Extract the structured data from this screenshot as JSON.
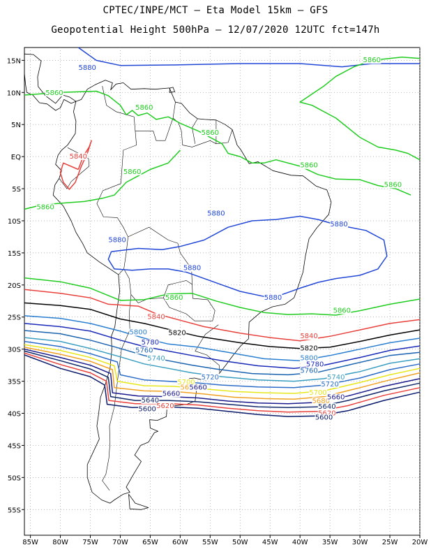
{
  "header": {
    "line1": "CPTEC/INPE/MCT –  Eta Model 15km – GFS",
    "line2": "Geopotential Height 500hPa – 12/07/2020 12UTC fct=147h"
  },
  "axes": {
    "lat_labels": [
      "15N",
      "10N",
      "5N",
      "EQ",
      "5S",
      "10S",
      "15S",
      "20S",
      "25S",
      "30S",
      "35S",
      "40S",
      "45S",
      "50S",
      "55S"
    ],
    "lat_values": [
      15,
      10,
      5,
      0,
      -5,
      -10,
      -15,
      -20,
      -25,
      -30,
      -35,
      -40,
      -45,
      -50,
      -55
    ],
    "lon_labels": [
      "85W",
      "80W",
      "75W",
      "70W",
      "65W",
      "60W",
      "55W",
      "50W",
      "45W",
      "40W",
      "35W",
      "30W",
      "25W",
      "20W"
    ],
    "lon_values": [
      -85,
      -80,
      -75,
      -70,
      -65,
      -60,
      -55,
      -50,
      -45,
      -40,
      -35,
      -30,
      -25,
      -20
    ],
    "lon_range": [
      -86,
      -20
    ],
    "lat_range": [
      -59,
      17
    ],
    "grid": "dotted"
  },
  "contour_levels": [
    {
      "value": "5880",
      "color": "#2046d6"
    },
    {
      "value": "5860",
      "color": "#1fcc1f"
    },
    {
      "value": "5840",
      "color": "#e8413c"
    },
    {
      "value": "5820",
      "color": "#000000"
    },
    {
      "value": "5800",
      "color": "#2a7fd0"
    },
    {
      "value": "5780",
      "color": "#1a2ab8"
    },
    {
      "value": "5760",
      "color": "#1a63b0"
    },
    {
      "value": "5740",
      "color": "#3a9ec0"
    },
    {
      "value": "5720",
      "color": "#2a6cc8"
    },
    {
      "value": "5700",
      "color": "#e6e61a"
    },
    {
      "value": "5680",
      "color": "#f0a020"
    },
    {
      "value": "5660",
      "color": "#1a1a8c"
    },
    {
      "value": "5640",
      "color": "#10286a"
    },
    {
      "value": "5620",
      "color": "#e8413c"
    },
    {
      "value": "5600",
      "color": "#0a1a6a"
    }
  ],
  "contour_labels": [
    {
      "text": "5880",
      "color": "#2046d6",
      "lon": -75.5,
      "lat": 13.5
    },
    {
      "text": "5860",
      "color": "#1fcc1f",
      "lon": -81,
      "lat": 9.6
    },
    {
      "text": "5860",
      "color": "#1fcc1f",
      "lon": -66,
      "lat": 7.3
    },
    {
      "text": "5860",
      "color": "#1fcc1f",
      "lon": -55,
      "lat": 3.4
    },
    {
      "text": "5860",
      "color": "#1fcc1f",
      "lon": -38.5,
      "lat": -1.7
    },
    {
      "text": "5860",
      "color": "#1fcc1f",
      "lon": -24.5,
      "lat": -4.7
    },
    {
      "text": "5860",
      "color": "#1fcc1f",
      "lon": -28,
      "lat": 14.7
    },
    {
      "text": "5860",
      "color": "#1fcc1f",
      "lon": -68,
      "lat": -2.7
    },
    {
      "text": "5860",
      "color": "#1fcc1f",
      "lon": -82.5,
      "lat": -8.2
    },
    {
      "text": "5840",
      "color": "#e8413c",
      "lon": -77,
      "lat": -0.3
    },
    {
      "text": "5880",
      "color": "#2046d6",
      "lon": -54,
      "lat": -9.2
    },
    {
      "text": "5880",
      "color": "#2046d6",
      "lon": -33.5,
      "lat": -10.9
    },
    {
      "text": "5880",
      "color": "#2046d6",
      "lon": -70.5,
      "lat": -13.3
    },
    {
      "text": "5880",
      "color": "#2046d6",
      "lon": -58,
      "lat": -17.7
    },
    {
      "text": "5860",
      "color": "#1fcc1f",
      "lon": -61,
      "lat": -22.3
    },
    {
      "text": "5880",
      "color": "#2046d6",
      "lon": -44.5,
      "lat": -22.3
    },
    {
      "text": "5860",
      "color": "#1fcc1f",
      "lon": -33,
      "lat": -24.3
    },
    {
      "text": "5840",
      "color": "#e8413c",
      "lon": -64,
      "lat": -25.3
    },
    {
      "text": "5820",
      "color": "#000000",
      "lon": -60.5,
      "lat": -27.8
    },
    {
      "text": "5840",
      "color": "#e8413c",
      "lon": -38.5,
      "lat": -28.3
    },
    {
      "text": "5820",
      "color": "#000000",
      "lon": -38.5,
      "lat": -30.2
    },
    {
      "text": "5800",
      "color": "#2a7fd0",
      "lon": -67,
      "lat": -27.7
    },
    {
      "text": "5780",
      "color": "#1a2ab8",
      "lon": -65,
      "lat": -29.3
    },
    {
      "text": "5760",
      "color": "#1a63b0",
      "lon": -66,
      "lat": -30.5
    },
    {
      "text": "5740",
      "color": "#3a9ec0",
      "lon": -64,
      "lat": -31.8
    },
    {
      "text": "5800",
      "color": "#2a7fd0",
      "lon": -38.5,
      "lat": -31.7
    },
    {
      "text": "5780",
      "color": "#1a2ab8",
      "lon": -37.5,
      "lat": -32.7
    },
    {
      "text": "5760",
      "color": "#1a63b0",
      "lon": -38.5,
      "lat": -33.7
    },
    {
      "text": "5740",
      "color": "#3a9ec0",
      "lon": -34,
      "lat": -34.7
    },
    {
      "text": "5720",
      "color": "#2a6cc8",
      "lon": -55,
      "lat": -34.7
    },
    {
      "text": "5720",
      "color": "#2a6cc8",
      "lon": -35,
      "lat": -35.8
    },
    {
      "text": "5700",
      "color": "#e6e61a",
      "lon": -59,
      "lat": -35.5
    },
    {
      "text": "5680",
      "color": "#f0a020",
      "lon": -58.5,
      "lat": -36.3
    },
    {
      "text": "5660",
      "color": "#1a1a8c",
      "lon": -57,
      "lat": -36.3
    },
    {
      "text": "5700",
      "color": "#e6e61a",
      "lon": -37,
      "lat": -37.1
    },
    {
      "text": "5680",
      "color": "#f0a020",
      "lon": -36.5,
      "lat": -38.4
    },
    {
      "text": "5660",
      "color": "#1a1a8c",
      "lon": -34,
      "lat": -37.8
    },
    {
      "text": "5660",
      "color": "#1a1a8c",
      "lon": -61.5,
      "lat": -37.3
    },
    {
      "text": "5640",
      "color": "#10286a",
      "lon": -65,
      "lat": -38.3
    },
    {
      "text": "5620",
      "color": "#e8413c",
      "lon": -62.5,
      "lat": -39.2
    },
    {
      "text": "5600",
      "color": "#0a1a6a",
      "lon": -65.5,
      "lat": -39.7
    },
    {
      "text": "5640",
      "color": "#10286a",
      "lon": -35.5,
      "lat": -39.3
    },
    {
      "text": "5620",
      "color": "#e8413c",
      "lon": -35.5,
      "lat": -40.3
    },
    {
      "text": "5600",
      "color": "#0a1a6a",
      "lon": -36,
      "lat": -41
    }
  ]
}
